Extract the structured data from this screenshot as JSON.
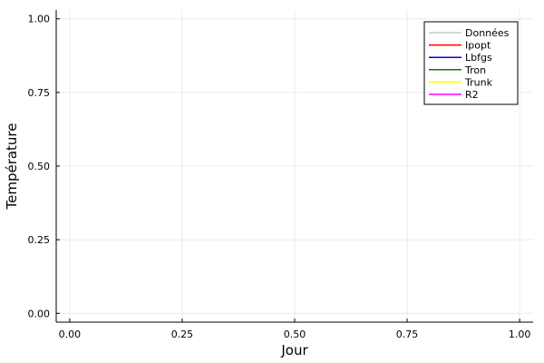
{
  "chart_data": {
    "type": "line",
    "title": "",
    "xlabel": "Jour",
    "ylabel": "Température",
    "xlim": [
      -0.03,
      1.03
    ],
    "ylim": [
      -0.03,
      1.03
    ],
    "xticks": [
      0.0,
      0.25,
      0.5,
      0.75,
      1.0
    ],
    "xtick_labels": [
      "0.00",
      "0.25",
      "0.50",
      "0.75",
      "1.00"
    ],
    "yticks": [
      0.0,
      0.25,
      0.5,
      0.75,
      1.0
    ],
    "ytick_labels": [
      "0.00",
      "0.25",
      "0.50",
      "0.75",
      "1.00"
    ],
    "grid": true,
    "legend_position": "top-right",
    "series": [
      {
        "name": "Données",
        "color": "#c8c8c8",
        "x": [],
        "y": []
      },
      {
        "name": "Ipopt",
        "color": "#ff0000",
        "x": [],
        "y": []
      },
      {
        "name": "Lbfgs",
        "color": "#0000ff",
        "x": [],
        "y": []
      },
      {
        "name": "Tron",
        "color": "#008000",
        "x": [],
        "y": []
      },
      {
        "name": "Trunk",
        "color": "#ffff00",
        "x": [],
        "y": []
      },
      {
        "name": "R2",
        "color": "#ff00ff",
        "x": [],
        "y": []
      }
    ]
  }
}
